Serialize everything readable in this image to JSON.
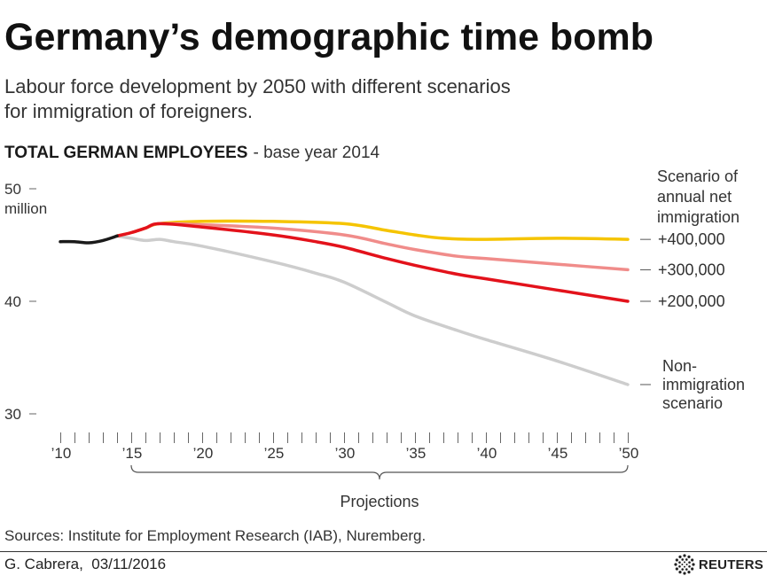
{
  "title": "Germany’s demographic time bomb",
  "subtitle": "Labour force development by 2050 with different scenarios for immigration of foreigners.",
  "chart_data": {
    "type": "line",
    "title": {
      "bold": "TOTAL GERMAN EMPLOYEES",
      "rest": "- base year 2014"
    },
    "y_unit": "million",
    "ylim": [
      30,
      50
    ],
    "y_ticks": [
      50,
      40,
      30
    ],
    "xlim": [
      2010,
      2050
    ],
    "x_minor_tick_step": 1,
    "x_tick_labels": [
      {
        "year": 2010,
        "label": "’10"
      },
      {
        "year": 2015,
        "label": "’15"
      },
      {
        "year": 2020,
        "label": "’20"
      },
      {
        "year": 2025,
        "label": "’25"
      },
      {
        "year": 2030,
        "label": "’30"
      },
      {
        "year": 2035,
        "label": "’35"
      },
      {
        "year": 2040,
        "label": "’40"
      },
      {
        "year": 2045,
        "label": "’45"
      },
      {
        "year": 2050,
        "label": "’50"
      }
    ],
    "grid": false,
    "legend_placement": "right",
    "legend_title_lines": [
      "Scenario of",
      "annual net",
      "immigration"
    ],
    "series": [
      {
        "color": "#1a1a1a",
        "x": [
          2010,
          2011,
          2012,
          2013,
          2014
        ],
        "values": [
          45.3,
          45.3,
          45.2,
          45.4,
          45.8
        ]
      },
      {
        "label_lines": [
          "+400,000"
        ],
        "color": "#F5C400",
        "x": [
          2014,
          2015,
          2016,
          2017,
          2020,
          2025,
          2030,
          2033,
          2035,
          2037,
          2040,
          2045,
          2050
        ],
        "values": [
          45.8,
          46.1,
          46.5,
          46.9,
          47.1,
          47.1,
          46.9,
          46.3,
          45.9,
          45.6,
          45.5,
          45.6,
          45.5
        ]
      },
      {
        "label_lines": [
          "+300,000"
        ],
        "color": "#F08C8A",
        "x": [
          2014,
          2015,
          2016,
          2017,
          2020,
          2025,
          2030,
          2033,
          2035,
          2038,
          2040,
          2045,
          2050
        ],
        "values": [
          45.8,
          46.1,
          46.5,
          46.9,
          46.8,
          46.5,
          45.9,
          45.1,
          44.6,
          44.0,
          43.8,
          43.3,
          42.8
        ]
      },
      {
        "label_lines": [
          "+200,000"
        ],
        "color": "#E3121B",
        "x": [
          2014,
          2015,
          2016,
          2017,
          2020,
          2025,
          2028,
          2030,
          2033,
          2035,
          2038,
          2040,
          2045,
          2050
        ],
        "values": [
          45.8,
          46.1,
          46.5,
          46.9,
          46.6,
          45.9,
          45.3,
          44.8,
          43.8,
          43.2,
          42.4,
          42.0,
          41.0,
          40.0
        ]
      },
      {
        "label_lines": [
          "Non-",
          "immigration",
          "scenario"
        ],
        "color": "#CDCDCD",
        "x": [
          2014,
          2015,
          2016,
          2017,
          2018,
          2020,
          2025,
          2028,
          2030,
          2033,
          2035,
          2038,
          2040,
          2045,
          2050
        ],
        "values": [
          45.8,
          45.6,
          45.4,
          45.5,
          45.3,
          44.9,
          43.5,
          42.5,
          41.7,
          39.9,
          38.7,
          37.4,
          36.6,
          34.7,
          32.6
        ]
      }
    ],
    "annotation": {
      "label": "Projections",
      "range": [
        2015,
        2050
      ]
    }
  },
  "source": "Sources: Institute for Employment Research (IAB), Nuremberg.",
  "footer": {
    "credit": "G. Cabrera,  03/11/2016",
    "logo_text": "REUTERS",
    "logo_icon": "reuters-logo-icon"
  }
}
